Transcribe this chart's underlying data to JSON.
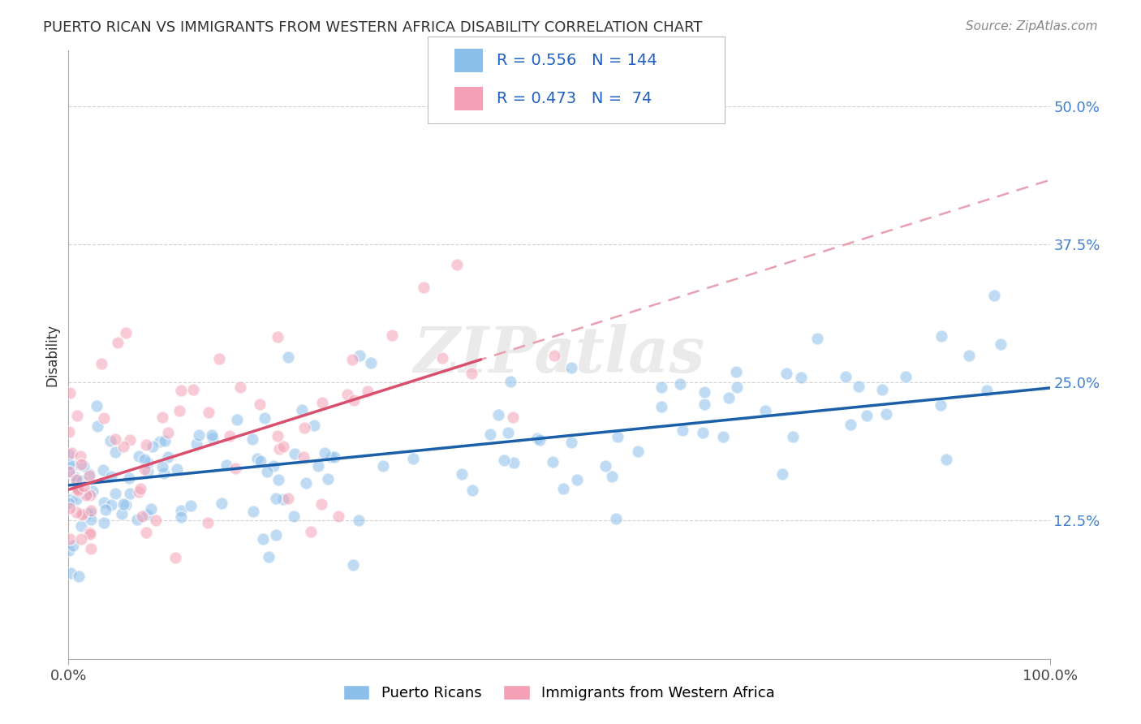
{
  "title": "PUERTO RICAN VS IMMIGRANTS FROM WESTERN AFRICA DISABILITY CORRELATION CHART",
  "source": "Source: ZipAtlas.com",
  "ylabel": "Disability",
  "background_color": "#ffffff",
  "grid_color": "#cccccc",
  "watermark": "ZIPatlas",
  "blue_R": 0.556,
  "blue_N": 144,
  "pink_R": 0.473,
  "pink_N": 74,
  "blue_color": "#8bbfea",
  "pink_color": "#f4a0b5",
  "blue_line_color": "#1a5fa8",
  "pink_line_color": "#d94f6e",
  "pink_line_dashed_color": "#e8a0b0",
  "legend_text_color": "#2060c0",
  "title_color": "#333333",
  "ytick_color": "#4080d0",
  "xlim": [
    0.0,
    1.0
  ],
  "ylim": [
    0.0,
    0.55
  ],
  "ytick_positions": [
    0.125,
    0.25,
    0.375,
    0.5
  ],
  "ytick_labels": [
    "12.5%",
    "25.0%",
    "37.5%",
    "50.0%"
  ]
}
